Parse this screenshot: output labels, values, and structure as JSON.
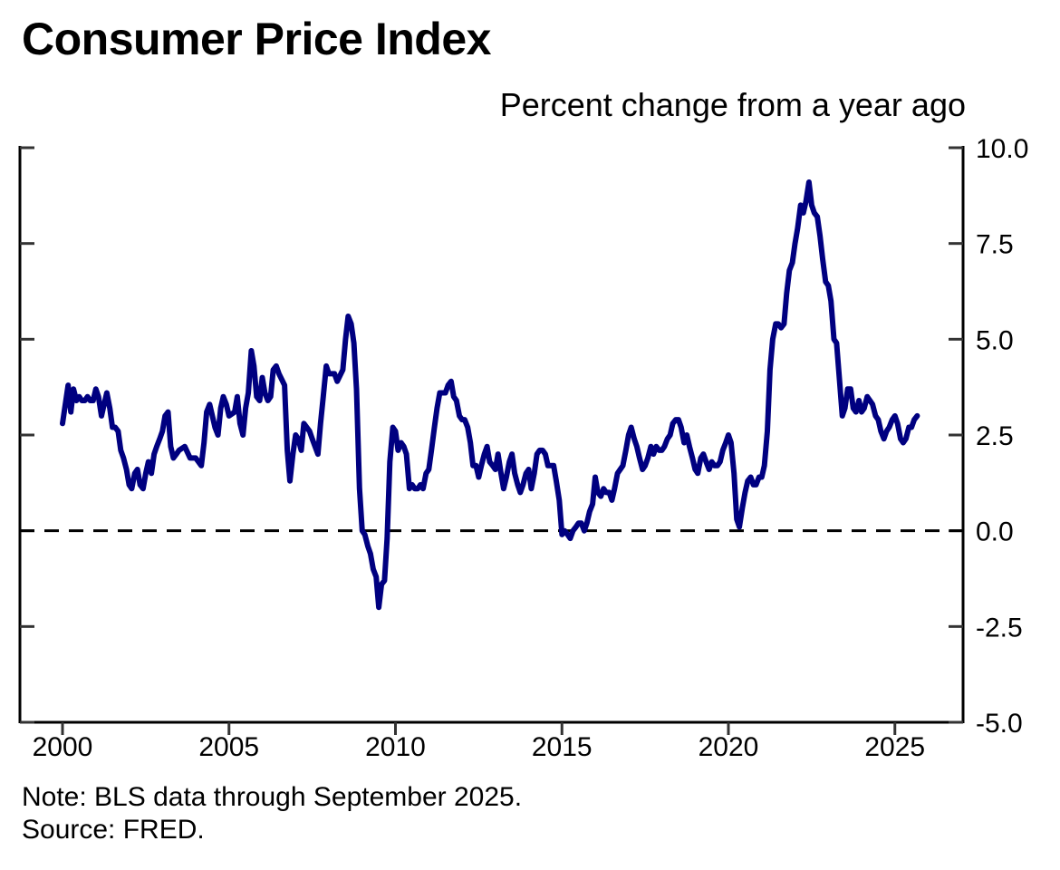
{
  "chart_data": {
    "type": "line",
    "title": "Consumer Price Index",
    "subtitle": "Percent change from a year ago",
    "xlim": [
      2000,
      2026.3
    ],
    "ylim": [
      -5.0,
      10.0
    ],
    "x_ticks": [
      2000,
      2005,
      2010,
      2015,
      2020,
      2025
    ],
    "x_tick_labels": [
      "2000",
      "2005",
      "2010",
      "2015",
      "2020",
      "2025"
    ],
    "y_ticks": [
      10.0,
      7.5,
      5.0,
      2.5,
      0.0,
      -2.5,
      -5.0
    ],
    "y_tick_labels": [
      "10.0",
      "7.5",
      "5.0",
      "2.5",
      "0.0",
      "-2.5",
      "-5.0"
    ],
    "y_axis_side": "right",
    "reference_line": {
      "y": 0.0,
      "style": "dashed",
      "color": "#000000"
    },
    "line_color": "#000080",
    "series": [
      {
        "x": [
          2000.0,
          2000.17,
          2000.25,
          2000.33,
          2000.42,
          2000.5,
          2000.58,
          2000.67,
          2000.75,
          2000.83,
          2000.92,
          2001.0,
          2001.08,
          2001.17,
          2001.25,
          2001.33,
          2001.42,
          2001.5,
          2001.58,
          2001.67,
          2001.75,
          2001.83,
          2001.92,
          2002.0,
          2002.08,
          2002.17,
          2002.25,
          2002.33,
          2002.42,
          2002.5,
          2002.58,
          2002.67,
          2002.75,
          2002.83,
          2002.92,
          2003.0,
          2003.08,
          2003.17,
          2003.25,
          2003.33,
          2003.42,
          2003.5,
          2003.67,
          2003.83,
          2003.92,
          2004.0,
          2004.17,
          2004.25,
          2004.33,
          2004.42,
          2004.5,
          2004.58,
          2004.67,
          2004.75,
          2004.83,
          2004.92,
          2005.0,
          2005.17,
          2005.25,
          2005.33,
          2005.42,
          2005.5,
          2005.58,
          2005.67,
          2005.75,
          2005.83,
          2005.92,
          2006.0,
          2006.08,
          2006.17,
          2006.25,
          2006.33,
          2006.42,
          2006.5,
          2006.67,
          2006.75,
          2006.83,
          2006.92,
          2007.0,
          2007.08,
          2007.17,
          2007.25,
          2007.42,
          2007.5,
          2007.67,
          2007.75,
          2007.83,
          2007.92,
          2008.0,
          2008.17,
          2008.25,
          2008.42,
          2008.5,
          2008.58,
          2008.67,
          2008.75,
          2008.83,
          2008.92,
          2009.0,
          2009.08,
          2009.17,
          2009.25,
          2009.33,
          2009.42,
          2009.5,
          2009.58,
          2009.67,
          2009.75,
          2009.83,
          2009.92,
          2010.0,
          2010.08,
          2010.17,
          2010.25,
          2010.33,
          2010.42,
          2010.5,
          2010.58,
          2010.67,
          2010.75,
          2010.83,
          2010.92,
          2011.0,
          2011.08,
          2011.17,
          2011.25,
          2011.33,
          2011.42,
          2011.5,
          2011.58,
          2011.67,
          2011.75,
          2011.83,
          2011.92,
          2012.0,
          2012.08,
          2012.17,
          2012.25,
          2012.33,
          2012.42,
          2012.5,
          2012.58,
          2012.67,
          2012.75,
          2012.83,
          2012.92,
          2013.0,
          2013.08,
          2013.17,
          2013.25,
          2013.33,
          2013.42,
          2013.5,
          2013.58,
          2013.67,
          2013.75,
          2013.83,
          2013.92,
          2014.0,
          2014.08,
          2014.17,
          2014.25,
          2014.33,
          2014.42,
          2014.5,
          2014.58,
          2014.67,
          2014.75,
          2014.83,
          2014.92,
          2015.0,
          2015.08,
          2015.17,
          2015.25,
          2015.33,
          2015.42,
          2015.5,
          2015.58,
          2015.67,
          2015.75,
          2015.83,
          2015.92,
          2016.0,
          2016.08,
          2016.17,
          2016.25,
          2016.33,
          2016.42,
          2016.5,
          2016.58,
          2016.67,
          2016.75,
          2016.83,
          2016.92,
          2017.0,
          2017.08,
          2017.17,
          2017.25,
          2017.33,
          2017.42,
          2017.5,
          2017.58,
          2017.67,
          2017.75,
          2017.83,
          2017.92,
          2018.0,
          2018.08,
          2018.17,
          2018.25,
          2018.33,
          2018.42,
          2018.5,
          2018.58,
          2018.67,
          2018.75,
          2018.83,
          2018.92,
          2019.0,
          2019.08,
          2019.17,
          2019.25,
          2019.33,
          2019.42,
          2019.5,
          2019.58,
          2019.67,
          2019.75,
          2019.83,
          2019.92,
          2020.0,
          2020.08,
          2020.17,
          2020.25,
          2020.33,
          2020.42,
          2020.5,
          2020.58,
          2020.67,
          2020.75,
          2020.83,
          2020.92,
          2021.0,
          2021.08,
          2021.17,
          2021.25,
          2021.33,
          2021.42,
          2021.5,
          2021.58,
          2021.67,
          2021.75,
          2021.83,
          2021.92,
          2022.0,
          2022.08,
          2022.17,
          2022.25,
          2022.33,
          2022.42,
          2022.5,
          2022.58,
          2022.67,
          2022.75,
          2022.83,
          2022.92,
          2023.0,
          2023.08,
          2023.17,
          2023.25,
          2023.33,
          2023.42,
          2023.5,
          2023.58,
          2023.67,
          2023.75,
          2023.83,
          2023.92,
          2024.0,
          2024.08,
          2024.17,
          2024.25,
          2024.33,
          2024.42,
          2024.5,
          2024.58,
          2024.67,
          2024.75,
          2024.83,
          2024.92,
          2025.0,
          2025.08,
          2025.17,
          2025.25,
          2025.33,
          2025.42,
          2025.5,
          2025.58,
          2025.67
        ],
        "y": [
          2.8,
          3.8,
          3.1,
          3.7,
          3.4,
          3.5,
          3.4,
          3.4,
          3.5,
          3.4,
          3.4,
          3.7,
          3.5,
          3.0,
          3.3,
          3.6,
          3.2,
          2.7,
          2.7,
          2.6,
          2.1,
          1.9,
          1.6,
          1.2,
          1.1,
          1.5,
          1.6,
          1.2,
          1.1,
          1.5,
          1.8,
          1.5,
          2.0,
          2.2,
          2.4,
          2.6,
          3.0,
          3.1,
          2.2,
          1.9,
          2.0,
          2.1,
          2.2,
          1.9,
          1.9,
          1.9,
          1.7,
          2.3,
          3.1,
          3.3,
          3.0,
          2.7,
          2.5,
          3.2,
          3.5,
          3.3,
          3.0,
          3.1,
          3.5,
          2.8,
          2.5,
          3.2,
          3.6,
          4.7,
          4.3,
          3.5,
          3.4,
          4.0,
          3.6,
          3.4,
          3.5,
          4.2,
          4.3,
          4.1,
          3.8,
          2.1,
          1.3,
          2.0,
          2.5,
          2.4,
          2.1,
          2.8,
          2.6,
          2.4,
          2.0,
          2.8,
          3.5,
          4.3,
          4.1,
          4.1,
          3.9,
          4.2,
          5.0,
          5.6,
          5.4,
          4.9,
          3.7,
          1.1,
          0.0,
          -0.1,
          -0.4,
          -0.6,
          -1.0,
          -1.2,
          -2.0,
          -1.4,
          -1.3,
          -0.2,
          1.8,
          2.7,
          2.6,
          2.1,
          2.3,
          2.2,
          2.0,
          1.1,
          1.2,
          1.1,
          1.1,
          1.2,
          1.1,
          1.5,
          1.6,
          2.1,
          2.7,
          3.2,
          3.6,
          3.6,
          3.6,
          3.8,
          3.9,
          3.5,
          3.4,
          3.0,
          2.9,
          2.9,
          2.7,
          2.3,
          1.7,
          1.7,
          1.4,
          1.7,
          2.0,
          2.2,
          1.8,
          1.7,
          1.6,
          2.0,
          1.5,
          1.1,
          1.4,
          1.8,
          2.0,
          1.5,
          1.2,
          1.0,
          1.2,
          1.5,
          1.6,
          1.1,
          1.5,
          2.0,
          2.1,
          2.1,
          2.0,
          1.7,
          1.7,
          1.7,
          1.3,
          0.8,
          -0.1,
          0.0,
          -0.1,
          -0.2,
          0.0,
          0.1,
          0.2,
          0.2,
          0.0,
          0.2,
          0.5,
          0.7,
          1.4,
          1.0,
          0.9,
          1.1,
          1.0,
          1.0,
          0.8,
          1.1,
          1.5,
          1.6,
          1.7,
          2.1,
          2.5,
          2.7,
          2.4,
          2.2,
          1.9,
          1.6,
          1.7,
          1.9,
          2.2,
          2.0,
          2.2,
          2.1,
          2.1,
          2.2,
          2.4,
          2.5,
          2.8,
          2.9,
          2.9,
          2.7,
          2.3,
          2.5,
          2.2,
          1.9,
          1.6,
          1.5,
          1.9,
          2.0,
          1.8,
          1.6,
          1.8,
          1.7,
          1.7,
          1.8,
          2.1,
          2.3,
          2.5,
          2.3,
          1.5,
          0.3,
          0.1,
          0.6,
          1.0,
          1.3,
          1.4,
          1.2,
          1.2,
          1.4,
          1.4,
          1.7,
          2.6,
          4.2,
          5.0,
          5.4,
          5.4,
          5.3,
          5.4,
          6.2,
          6.8,
          7.0,
          7.5,
          7.9,
          8.5,
          8.3,
          8.6,
          9.1,
          8.5,
          8.3,
          8.2,
          7.7,
          7.1,
          6.5,
          6.4,
          6.0,
          5.0,
          4.9,
          4.0,
          3.0,
          3.2,
          3.7,
          3.7,
          3.2,
          3.1,
          3.4,
          3.1,
          3.2,
          3.5,
          3.4,
          3.3,
          3.0,
          2.9,
          2.6,
          2.4,
          2.6,
          2.7,
          2.9,
          3.0,
          2.8,
          2.4,
          2.3,
          2.4,
          2.7,
          2.7,
          2.9,
          3.0
        ]
      }
    ],
    "note": "Note: BLS data through September 2025.",
    "source": "Source: FRED."
  }
}
